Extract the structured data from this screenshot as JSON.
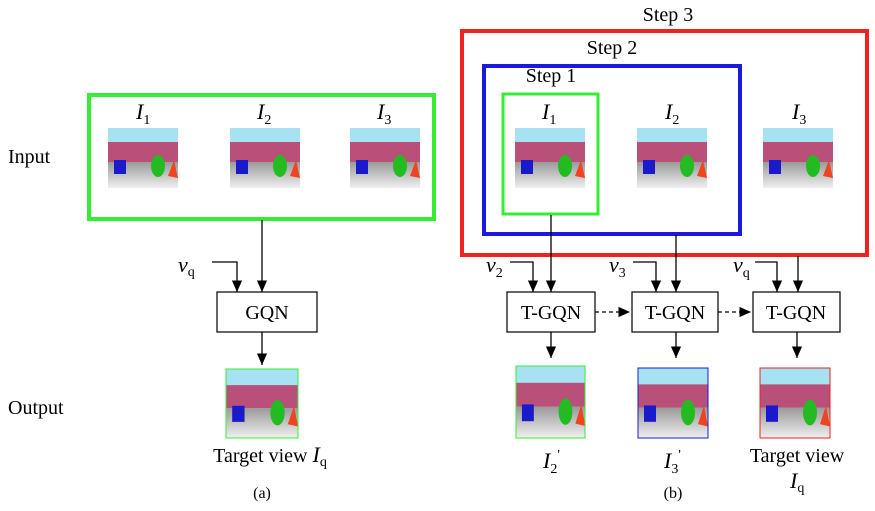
{
  "panel_a": {
    "row_labels": [
      "Input",
      "Output"
    ],
    "inputs": [
      {
        "main": "I",
        "sub": "1"
      },
      {
        "main": "I",
        "sub": "2"
      },
      {
        "main": "I",
        "sub": "3"
      }
    ],
    "query": {
      "main": "v",
      "sub": "q"
    },
    "model": "GQN",
    "output": {
      "text": "Target view",
      "main": "I",
      "sub": "q"
    },
    "caption": "(a)"
  },
  "panel_b": {
    "steps": [
      "Step 3",
      "Step 2",
      "Step 1"
    ],
    "inputs": [
      {
        "main": "I",
        "sub": "1"
      },
      {
        "main": "I",
        "sub": "2"
      },
      {
        "main": "I",
        "sub": "3"
      }
    ],
    "queries": [
      {
        "main": "v",
        "sub": "2"
      },
      {
        "main": "v",
        "sub": "3"
      },
      {
        "main": "v",
        "sub": "q"
      }
    ],
    "models": [
      "T-GQN",
      "T-GQN",
      "T-GQN"
    ],
    "outputs": [
      {
        "main": "I",
        "sub": "2",
        "sup": "'"
      },
      {
        "main": "I",
        "sub": "3",
        "sup": "'"
      }
    ],
    "final_output": {
      "text": "Target view",
      "main": "I",
      "sub": "q"
    },
    "caption": "(b)"
  }
}
